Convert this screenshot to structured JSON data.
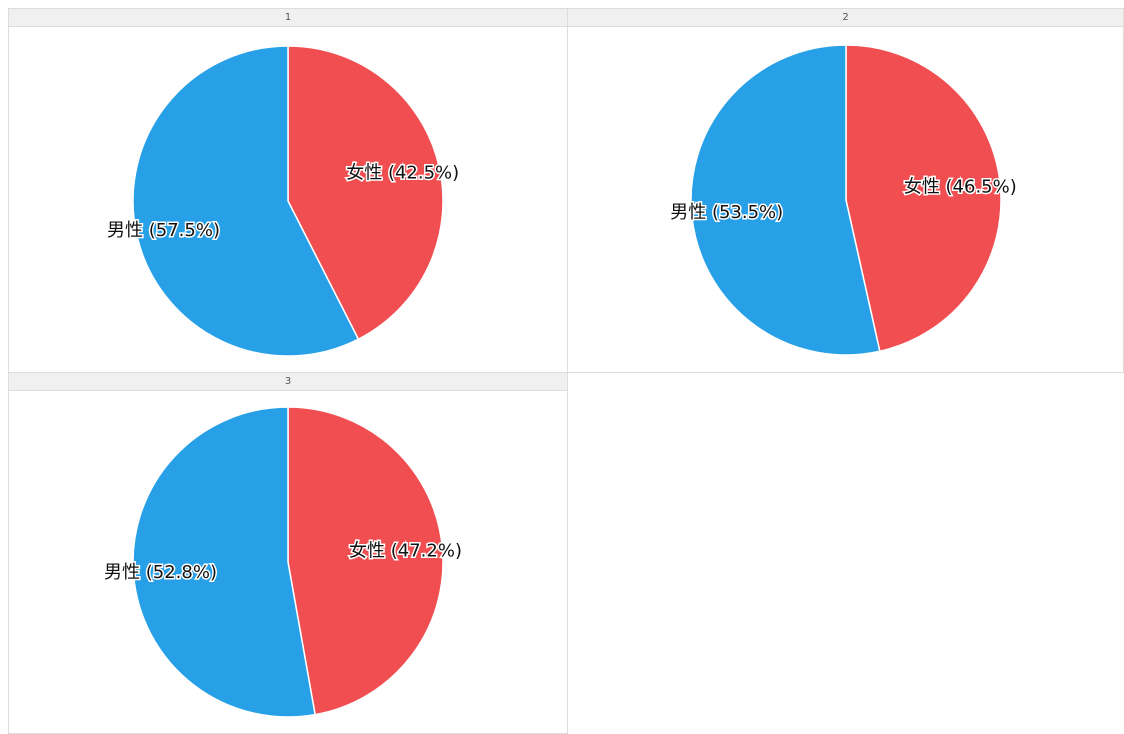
{
  "chart_data": [
    {
      "type": "pie",
      "title": "1",
      "categories": [
        "女性",
        "男性"
      ],
      "values": [
        42.5,
        57.5
      ],
      "labels": [
        "女性 (42.5%)",
        "男性 (57.5%)"
      ],
      "colors": [
        "#f04e50",
        "#27a0e8"
      ]
    },
    {
      "type": "pie",
      "title": "2",
      "categories": [
        "女性",
        "男性"
      ],
      "values": [
        46.5,
        53.5
      ],
      "labels": [
        "女性 (46.5%)",
        "男性 (53.5%)"
      ],
      "colors": [
        "#f04e50",
        "#27a0e8"
      ]
    },
    {
      "type": "pie",
      "title": "3",
      "categories": [
        "女性",
        "男性"
      ],
      "values": [
        47.2,
        52.8
      ],
      "labels": [
        "女性 (47.2%)",
        "男性 (52.8%)"
      ],
      "colors": [
        "#f04e50",
        "#27a0e8"
      ]
    }
  ]
}
